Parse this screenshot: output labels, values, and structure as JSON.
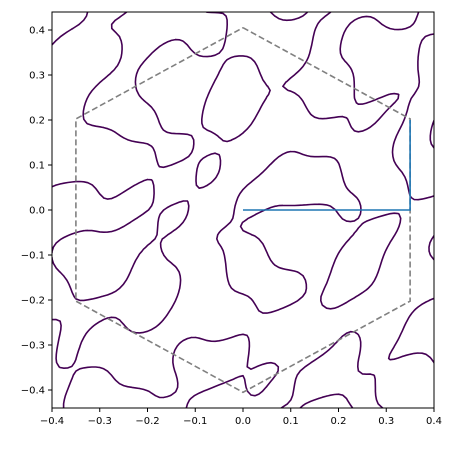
{
  "chart_data": {
    "type": "line",
    "title": "",
    "xlabel": "",
    "ylabel": "",
    "xlim": [
      -0.4,
      0.4
    ],
    "ylim": [
      -0.44,
      0.44
    ],
    "grid": false,
    "x_ticks": [
      -0.4,
      -0.3,
      -0.2,
      -0.1,
      0.0,
      0.1,
      0.2,
      0.3,
      0.4
    ],
    "x_tick_labels": [
      "−0.4",
      "−0.3",
      "−0.2",
      "−0.1",
      "0.0",
      "0.1",
      "0.2",
      "0.3",
      "0.4"
    ],
    "y_ticks": [
      0.4,
      0.3,
      0.2,
      0.1,
      0.0,
      -0.1,
      -0.2,
      -0.3,
      -0.4
    ],
    "y_tick_labels": [
      "0.4",
      "0.3",
      "0.2",
      "0.1",
      "0.0",
      "−0.1",
      "−0.2",
      "−0.3",
      "−0.4"
    ],
    "series": [
      {
        "style": "dashed",
        "color": "#808080",
        "x": [
          0.0,
          0.35,
          0.35,
          0.0,
          -0.35,
          -0.35,
          0.0
        ],
        "y": [
          0.405,
          0.2025,
          -0.2025,
          -0.405,
          -0.2025,
          0.2025,
          0.405
        ]
      },
      {
        "style": "solid",
        "color": "#1f77b4",
        "x": [
          0.0,
          0.35,
          0.35
        ],
        "y": [
          0.0,
          0.0,
          0.2
        ]
      }
    ],
    "contour": {
      "color": "#440154",
      "cells": 22,
      "amplitude": 0.42
    }
  }
}
